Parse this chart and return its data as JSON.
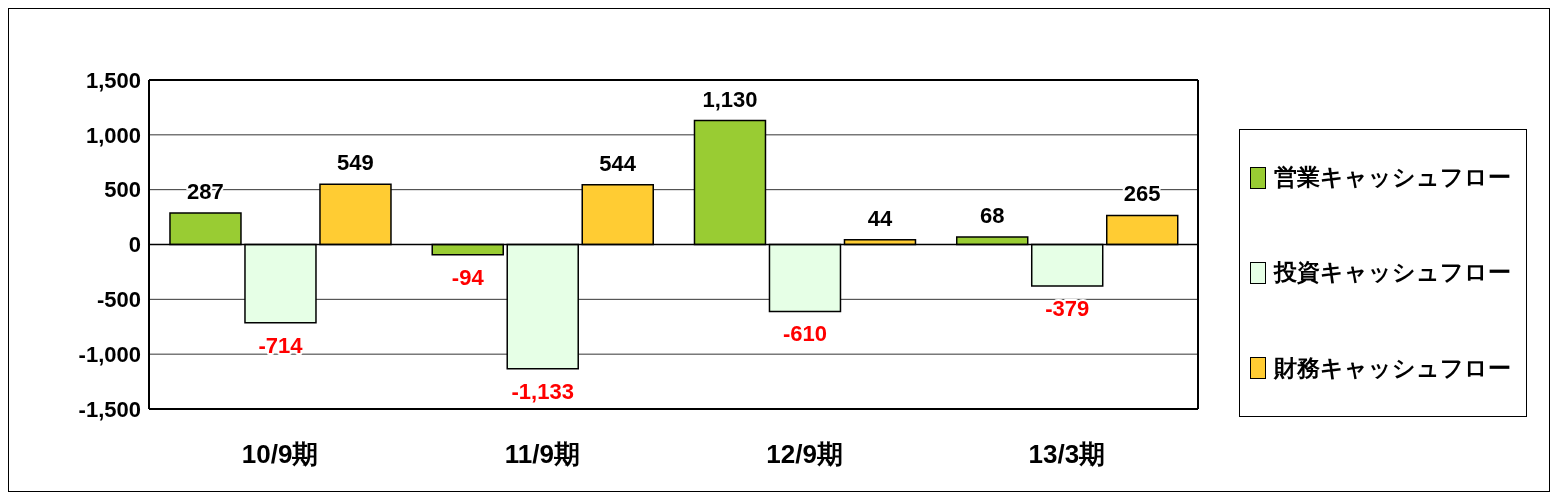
{
  "chart_data": {
    "type": "bar",
    "categories": [
      "10/9期",
      "11/9期",
      "12/9期",
      "13/3期"
    ],
    "series": [
      {
        "name": "営業キャッシュフロー",
        "color": "#99cc33",
        "values": [
          287,
          -94,
          1130,
          68
        ],
        "value_labels": [
          "287",
          "-94",
          "1,130",
          "68"
        ]
      },
      {
        "name": "投資キャッシュフロー",
        "color": "#e6ffe6",
        "values": [
          -714,
          -1133,
          -610,
          -379
        ],
        "value_labels": [
          "-714",
          "-1,133",
          "-610",
          "-379"
        ]
      },
      {
        "name": "財務キャッシュフロー",
        "color": "#ffcc33",
        "values": [
          549,
          544,
          44,
          265
        ],
        "value_labels": [
          "549",
          "544",
          "44",
          "265"
        ]
      }
    ],
    "ylim": [
      -1500,
      1500
    ],
    "yticks": [
      {
        "value": -1500,
        "label": "-1,500"
      },
      {
        "value": -1000,
        "label": "-1,000"
      },
      -500,
      0,
      500,
      {
        "value": 1000,
        "label": "1,000"
      },
      {
        "value": 1500,
        "label": "1,500"
      }
    ],
    "grid": "y",
    "legend": "right"
  }
}
